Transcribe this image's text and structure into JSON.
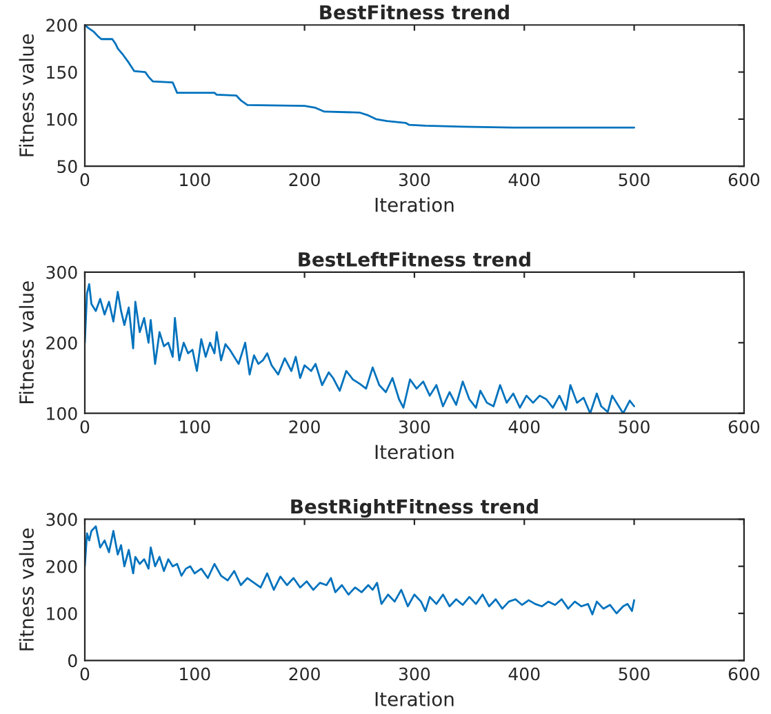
{
  "chart_data": [
    {
      "type": "line",
      "title": "BestFitness trend",
      "xlabel": "Iteration",
      "ylabel": "Fitness value",
      "xlim": [
        0,
        600
      ],
      "xticks": [
        0,
        100,
        200,
        300,
        400,
        500,
        600
      ],
      "ylim": [
        50,
        200
      ],
      "yticks": [
        50,
        100,
        150,
        200
      ],
      "grid": false,
      "legend": false,
      "series": [
        {
          "color": "#0072bd",
          "x": [
            0,
            3,
            8,
            12,
            15,
            25,
            28,
            30,
            35,
            40,
            45,
            55,
            58,
            62,
            80,
            84,
            118,
            120,
            138,
            142,
            148,
            200,
            210,
            218,
            250,
            258,
            265,
            275,
            292,
            295,
            310,
            345,
            390,
            500
          ],
          "values": [
            200,
            197,
            193,
            188,
            185,
            185,
            180,
            175,
            168,
            160,
            151,
            150,
            145,
            140,
            139,
            128,
            128,
            126,
            125,
            120,
            115,
            114,
            112,
            108,
            107,
            104,
            100,
            98,
            96,
            94,
            93,
            92,
            91,
            91
          ]
        }
      ]
    },
    {
      "type": "line",
      "title": "BestLeftFitness trend",
      "xlabel": "Iteration",
      "ylabel": "Fitness value",
      "xlim": [
        0,
        600
      ],
      "xticks": [
        0,
        100,
        200,
        300,
        400,
        500,
        600
      ],
      "ylim": [
        100,
        300
      ],
      "yticks": [
        100,
        200,
        300
      ],
      "grid": false,
      "legend": false,
      "series": [
        {
          "color": "#0072bd",
          "x": [
            0,
            2,
            4,
            6,
            10,
            14,
            18,
            22,
            26,
            30,
            33,
            36,
            40,
            44,
            46,
            50,
            54,
            58,
            60,
            64,
            68,
            72,
            76,
            80,
            82,
            86,
            90,
            94,
            98,
            102,
            106,
            110,
            114,
            118,
            120,
            124,
            128,
            132,
            136,
            140,
            146,
            150,
            154,
            158,
            162,
            166,
            170,
            176,
            182,
            188,
            192,
            196,
            200,
            206,
            210,
            216,
            222,
            226,
            232,
            238,
            244,
            250,
            256,
            262,
            268,
            274,
            280,
            286,
            290,
            296,
            302,
            308,
            314,
            320,
            326,
            332,
            338,
            344,
            350,
            356,
            360,
            366,
            372,
            378,
            384,
            390,
            396,
            402,
            408,
            414,
            420,
            426,
            432,
            438,
            442,
            448,
            454,
            460,
            466,
            470,
            476,
            480,
            486,
            490,
            496,
            500
          ],
          "values": [
            200,
            270,
            283,
            255,
            245,
            262,
            240,
            258,
            230,
            272,
            245,
            225,
            250,
            192,
            258,
            215,
            235,
            200,
            232,
            170,
            215,
            195,
            200,
            180,
            235,
            175,
            200,
            185,
            190,
            160,
            205,
            180,
            200,
            185,
            215,
            175,
            198,
            190,
            180,
            170,
            200,
            155,
            182,
            170,
            175,
            185,
            168,
            155,
            178,
            160,
            180,
            150,
            168,
            160,
            170,
            140,
            158,
            150,
            132,
            160,
            148,
            142,
            135,
            165,
            140,
            130,
            150,
            120,
            108,
            148,
            135,
            145,
            125,
            140,
            110,
            130,
            112,
            145,
            120,
            108,
            132,
            115,
            110,
            140,
            115,
            128,
            108,
            125,
            115,
            125,
            120,
            108,
            125,
            105,
            140,
            115,
            122,
            100,
            128,
            110,
            102,
            125,
            110,
            100,
            118,
            110
          ]
        }
      ]
    },
    {
      "type": "line",
      "title": "BestRightFitness trend",
      "xlabel": "Iteration",
      "ylabel": "Fitness value",
      "xlim": [
        0,
        600
      ],
      "xticks": [
        0,
        100,
        200,
        300,
        400,
        500,
        600
      ],
      "ylim": [
        0,
        300
      ],
      "yticks": [
        0,
        100,
        200,
        300
      ],
      "grid": false,
      "legend": false,
      "series": [
        {
          "color": "#0072bd",
          "x": [
            0,
            2,
            4,
            6,
            10,
            14,
            18,
            22,
            26,
            30,
            33,
            36,
            40,
            44,
            46,
            50,
            54,
            58,
            60,
            64,
            68,
            72,
            76,
            80,
            84,
            88,
            92,
            96,
            100,
            106,
            112,
            118,
            124,
            130,
            136,
            142,
            148,
            154,
            160,
            166,
            172,
            178,
            184,
            190,
            196,
            202,
            208,
            214,
            220,
            224,
            228,
            234,
            240,
            246,
            252,
            258,
            262,
            266,
            270,
            276,
            282,
            288,
            294,
            300,
            306,
            310,
            314,
            320,
            326,
            332,
            338,
            344,
            350,
            356,
            362,
            368,
            374,
            380,
            386,
            392,
            398,
            404,
            410,
            416,
            422,
            428,
            434,
            440,
            446,
            452,
            458,
            462,
            466,
            472,
            478,
            484,
            490,
            494,
            498,
            500
          ],
          "values": [
            200,
            270,
            255,
            275,
            285,
            240,
            255,
            230,
            275,
            225,
            245,
            200,
            235,
            185,
            220,
            205,
            215,
            195,
            240,
            200,
            220,
            190,
            215,
            200,
            205,
            180,
            195,
            200,
            185,
            195,
            175,
            205,
            180,
            170,
            190,
            160,
            175,
            165,
            155,
            185,
            150,
            178,
            160,
            175,
            155,
            168,
            150,
            165,
            160,
            175,
            145,
            160,
            140,
            155,
            145,
            160,
            150,
            165,
            120,
            140,
            125,
            150,
            115,
            140,
            125,
            105,
            135,
            120,
            140,
            115,
            130,
            118,
            135,
            120,
            140,
            115,
            130,
            110,
            125,
            130,
            118,
            128,
            120,
            115,
            125,
            118,
            130,
            110,
            125,
            115,
            120,
            98,
            125,
            110,
            118,
            100,
            115,
            120,
            105,
            128
          ]
        }
      ]
    }
  ]
}
